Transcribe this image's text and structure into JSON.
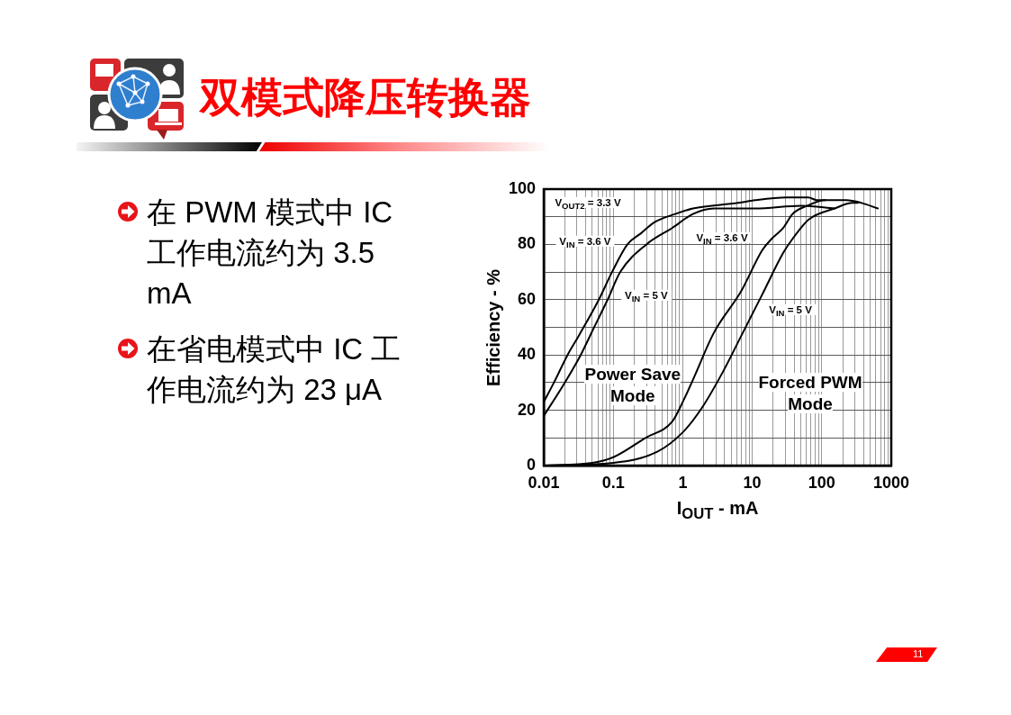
{
  "chart_data": {
    "type": "line",
    "title": "双模式降压转换器",
    "xlabel": "I$_{OUT}$ - mA",
    "ylabel": "Efficiency - %",
    "log": "x",
    "grid": true,
    "xlim": [
      0.01,
      1000
    ],
    "xticks": [
      0.01,
      {
        "value": 0.02,
        "label": null
      },
      {
        "value": 0.03,
        "label": null
      },
      {
        "value": 0.04,
        "label": null
      },
      {
        "value": 0.05,
        "label": null
      },
      {
        "value": 0.06,
        "label": null
      },
      {
        "value": 0.07,
        "label": null
      },
      {
        "value": 0.08,
        "label": null
      },
      {
        "value": 0.09,
        "label": null
      },
      0.1,
      {
        "value": 0.2,
        "label": null
      },
      {
        "value": 0.3,
        "label": null
      },
      {
        "value": 0.4,
        "label": null
      },
      {
        "value": 0.5,
        "label": null
      },
      {
        "value": 0.6,
        "label": null
      },
      {
        "value": 0.7,
        "label": null
      },
      {
        "value": 0.8,
        "label": null
      },
      {
        "value": 0.9,
        "label": null
      },
      1,
      {
        "value": 2,
        "label": null
      },
      {
        "value": 3,
        "label": null
      },
      {
        "value": 4,
        "label": null
      },
      {
        "value": 5,
        "label": null
      },
      {
        "value": 6,
        "label": null
      },
      {
        "value": 7,
        "label": null
      },
      {
        "value": 8,
        "label": null
      },
      {
        "value": 9,
        "label": null
      },
      10,
      {
        "value": 20,
        "label": null
      },
      {
        "value": 30,
        "label": null
      },
      {
        "value": 40,
        "label": null
      },
      {
        "value": 50,
        "label": null
      },
      {
        "value": 60,
        "label": null
      },
      {
        "value": 70,
        "label": null
      },
      {
        "value": 80,
        "label": null
      },
      {
        "value": 90,
        "label": null
      },
      100,
      {
        "value": 200,
        "label": null
      },
      {
        "value": 300,
        "label": null
      },
      {
        "value": 400,
        "label": null
      },
      {
        "value": 500,
        "label": null
      },
      {
        "value": 600,
        "label": null
      },
      {
        "value": 700,
        "label": null
      },
      {
        "value": 800,
        "label": null
      },
      {
        "value": 900,
        "label": null
      },
      1000
    ],
    "ylim": [
      0,
      100
    ],
    "yticks": [
      0,
      {
        "value": 10,
        "label": null
      },
      20,
      {
        "value": 30,
        "label": null
      },
      40,
      {
        "value": 50,
        "label": null
      },
      60,
      {
        "value": 70,
        "label": null
      },
      80,
      {
        "value": 90,
        "label": null
      },
      100
    ],
    "series": [
      {
        "color": "#000000",
        "x": [
          0.01,
          0.014,
          0.022,
          0.032,
          0.062,
          0.096,
          0.16,
          0.25,
          0.39,
          0.78,
          1.4,
          6.3,
          11,
          31,
          64,
          85,
          113
        ],
        "values": [
          23,
          30,
          40,
          47,
          60,
          70,
          80,
          84,
          88,
          91,
          93,
          95,
          96,
          97,
          97,
          96,
          96
        ]
      },
      {
        "color": "#000000",
        "x": [
          0.01,
          0.019,
          0.034,
          0.053,
          0.083,
          0.126,
          0.3,
          0.71,
          1.4,
          2.8,
          11,
          51,
          153
        ],
        "values": [
          18,
          29,
          40,
          50,
          60,
          70,
          80,
          86,
          91,
          93,
          93,
          94,
          93
        ]
      },
      {
        "color": "#000000",
        "x": [
          0.01,
          0.05,
          0.1,
          0.29,
          0.71,
          1,
          1.4,
          2.8,
          6.9,
          14,
          19,
          28,
          38,
          62,
          113,
          225,
          374,
          640
        ],
        "values": [
          0,
          1,
          3,
          10,
          16,
          23,
          31,
          48,
          63,
          78,
          82,
          86,
          91,
          94,
          96,
          96,
          95,
          93
        ]
      },
      {
        "color": "#000000",
        "x": [
          0.01,
          0.1,
          0.43,
          1,
          1.9,
          3.8,
          7.3,
          14,
          28,
          38,
          65,
          153,
          277,
          330
        ],
        "values": [
          0,
          1,
          5,
          12,
          21,
          34,
          48,
          62,
          77,
          82,
          89,
          93,
          95,
          95
        ]
      }
    ],
    "annotations": [
      "在 PWM 模式中 IC 工作电流约为 3.5 mA",
      "在省电模式中 IC 工作电流约为 23 μA",
      "11",
      "V$_{OUT2}$ = 3.3 V",
      "V$_{IN}$ = 3.6 V",
      "V$_{IN}$ = 5 V",
      "V$_{IN}$ = 3.6 V",
      "V$_{IN}$ = 5 V",
      "Power Save Mode",
      "Forced PWM Mode"
    ]
  }
}
